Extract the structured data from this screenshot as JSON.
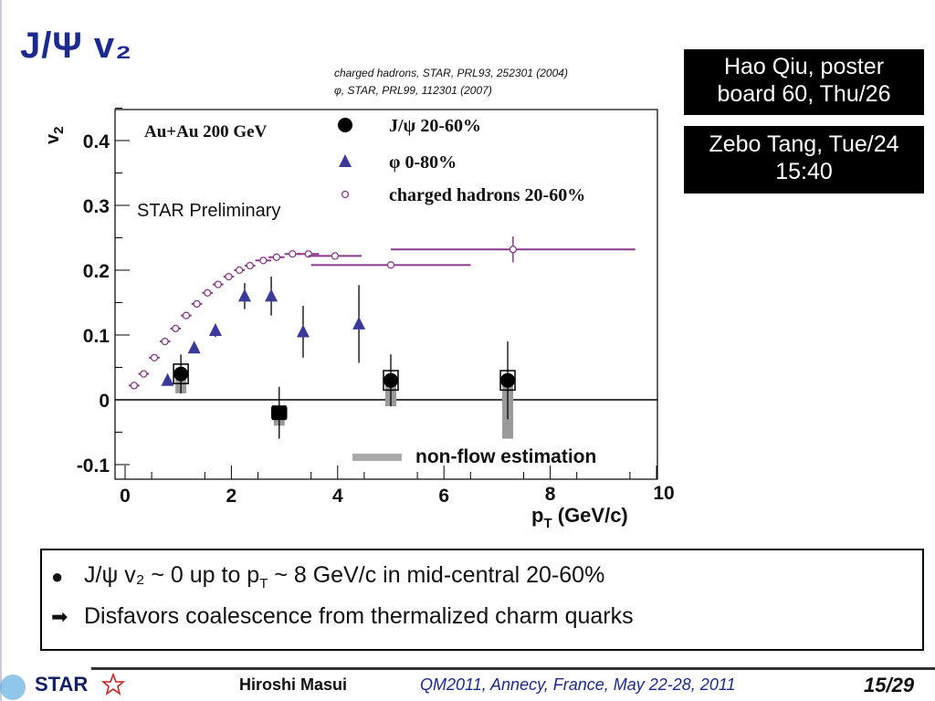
{
  "slide": {
    "title": "J/Ψ v₂",
    "references": [
      "charged hadrons, STAR, PRL93, 252301 (2004)",
      "φ, STAR, PRL99, 112301 (2007)"
    ],
    "talk_boxes": [
      {
        "line1": "Hao Qiu, poster",
        "line2": "board 60, Thu/26"
      },
      {
        "line1": "Zebo Tang, Tue/24",
        "line2": "15:40"
      }
    ]
  },
  "chart_data": {
    "type": "scatter",
    "title": "",
    "xlabel": "pT (GeV/c)",
    "ylabel": "v2",
    "xlim": [
      0,
      10
    ],
    "ylim": [
      -0.12,
      0.46
    ],
    "x_ticks": [
      0,
      2,
      4,
      6,
      8,
      10
    ],
    "y_ticks": [
      -0.1,
      0,
      0.1,
      0.2,
      0.3,
      0.4
    ],
    "y_tick_labels": [
      "-0.1",
      "0",
      "0.1",
      "0.2",
      "0.3",
      "0.4"
    ],
    "collision_label": "Au+Au 200 GeV",
    "preliminary_label": "STAR Preliminary",
    "nonflow_label": "non-flow estimation",
    "series": [
      {
        "name": "J/ψ 20-60%",
        "marker": "filled-circle",
        "color": "#000000",
        "points": [
          {
            "x": 1.05,
            "y": 0.04,
            "err": 0.03,
            "sys": 0.015,
            "nonflow": [
              0.01,
              0.04
            ]
          },
          {
            "x": 2.9,
            "y": -0.02,
            "err": 0.04,
            "sys": 0.008,
            "nonflow": [
              -0.04,
              -0.02
            ]
          },
          {
            "x": 5.0,
            "y": 0.03,
            "err": 0.04,
            "sys": 0.015,
            "nonflow": [
              -0.01,
              0.03
            ]
          },
          {
            "x": 7.2,
            "y": 0.03,
            "err": 0.06,
            "sys": 0.015,
            "nonflow": [
              -0.06,
              0.03
            ]
          }
        ]
      },
      {
        "name": "φ 0-80%",
        "marker": "filled-triangle",
        "color": "#3a3a9a",
        "points": [
          {
            "x": 0.8,
            "y": 0.03,
            "err": 0.005
          },
          {
            "x": 1.3,
            "y": 0.08,
            "err": 0.006
          },
          {
            "x": 1.7,
            "y": 0.107,
            "err": 0.01
          },
          {
            "x": 2.25,
            "y": 0.16,
            "err": 0.02
          },
          {
            "x": 2.75,
            "y": 0.16,
            "err": 0.03
          },
          {
            "x": 3.35,
            "y": 0.105,
            "err": 0.04
          },
          {
            "x": 4.4,
            "y": 0.117,
            "err": 0.06
          }
        ]
      },
      {
        "name": "charged hadrons 20-60%",
        "marker": "open-circle",
        "color": "#8a3a8a",
        "points": [
          {
            "x": 0.17,
            "y": 0.022,
            "xerr": 0.1,
            "err": 0
          },
          {
            "x": 0.35,
            "y": 0.04,
            "xerr": 0.1,
            "err": 0
          },
          {
            "x": 0.55,
            "y": 0.065,
            "xerr": 0.1,
            "err": 0
          },
          {
            "x": 0.75,
            "y": 0.09,
            "xerr": 0.1,
            "err": 0
          },
          {
            "x": 0.95,
            "y": 0.11,
            "xerr": 0.1,
            "err": 0
          },
          {
            "x": 1.15,
            "y": 0.13,
            "xerr": 0.1,
            "err": 0
          },
          {
            "x": 1.35,
            "y": 0.148,
            "xerr": 0.1,
            "err": 0
          },
          {
            "x": 1.55,
            "y": 0.165,
            "xerr": 0.1,
            "err": 0
          },
          {
            "x": 1.75,
            "y": 0.178,
            "xerr": 0.1,
            "err": 0
          },
          {
            "x": 1.95,
            "y": 0.19,
            "xerr": 0.1,
            "err": 0
          },
          {
            "x": 2.15,
            "y": 0.2,
            "xerr": 0.1,
            "err": 0
          },
          {
            "x": 2.35,
            "y": 0.207,
            "xerr": 0.1,
            "err": 0
          },
          {
            "x": 2.6,
            "y": 0.215,
            "xerr": 0.15,
            "err": 0
          },
          {
            "x": 2.85,
            "y": 0.22,
            "xerr": 0.15,
            "err": 0
          },
          {
            "x": 3.15,
            "y": 0.225,
            "xerr": 0.15,
            "err": 0
          },
          {
            "x": 3.45,
            "y": 0.225,
            "xerr": 0.2,
            "err": 0
          },
          {
            "x": 3.95,
            "y": 0.222,
            "xerr": 0.5,
            "err": 0
          },
          {
            "x": 5.0,
            "y": 0.208,
            "xerr": 1.5,
            "err": 0
          },
          {
            "x": 7.3,
            "y": 0.232,
            "xerr": 2.3,
            "err": 0.02
          }
        ]
      }
    ]
  },
  "summary": {
    "bullet1": {
      "prefix": "J/ψ v₂ ~ 0 up to p",
      "sub": "T",
      "suffix": " ~ 8 GeV/c in mid-central 20-60%"
    },
    "bullet2": "Disfavors coalescence from thermalized charm quarks"
  },
  "footer": {
    "logo_text": "STAR",
    "author": "Hiroshi Masui",
    "conference": "QM2011, Annecy, France, May 22-28, 2011",
    "page": "15/29"
  }
}
